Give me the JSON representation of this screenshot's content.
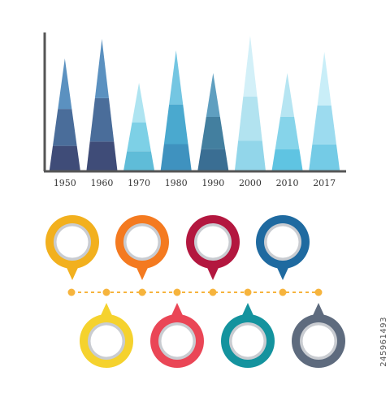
{
  "chart_data": {
    "type": "bar",
    "categories": [
      "1950",
      "1960",
      "1970",
      "1980",
      "1990",
      "2000",
      "2010",
      "2017"
    ],
    "values": [
      138,
      162,
      108,
      148,
      120,
      166,
      120,
      146
    ],
    "ylim": [
      0,
      170
    ],
    "title": "",
    "xlabel": "",
    "ylabel": "",
    "grid": false,
    "legend": "none",
    "bar_shape": "triangle",
    "palettes": [
      [
        "#3f4c78",
        "#4a6d9a",
        "#5b91c0"
      ],
      [
        "#3f4c78",
        "#4a6d9a",
        "#5b91c0"
      ],
      [
        "#5fbcd8",
        "#7dd0e6",
        "#aee4f1"
      ],
      [
        "#3f92bf",
        "#4aa9cf",
        "#74c6e2"
      ],
      [
        "#3a6e93",
        "#437f9f",
        "#5f9fc0"
      ],
      [
        "#92d6ea",
        "#b2e3f0",
        "#d3f0f8"
      ],
      [
        "#5fc4e2",
        "#86d4ea",
        "#b6e5f2"
      ],
      [
        "#74cbe6",
        "#9cdbef",
        "#c9eef8"
      ]
    ]
  },
  "pins": {
    "top_colors": [
      "#f2b01e",
      "#f47a20",
      "#b3173f",
      "#1f6aa0"
    ],
    "bottom_colors": [
      "#f5d22e",
      "#ea4656",
      "#14939e",
      "#5e6b7e"
    ],
    "connector_color": "#f6b43d",
    "ring_inner_color": "#c9ccd1"
  },
  "watermark": {
    "stock_id": "245961493"
  }
}
